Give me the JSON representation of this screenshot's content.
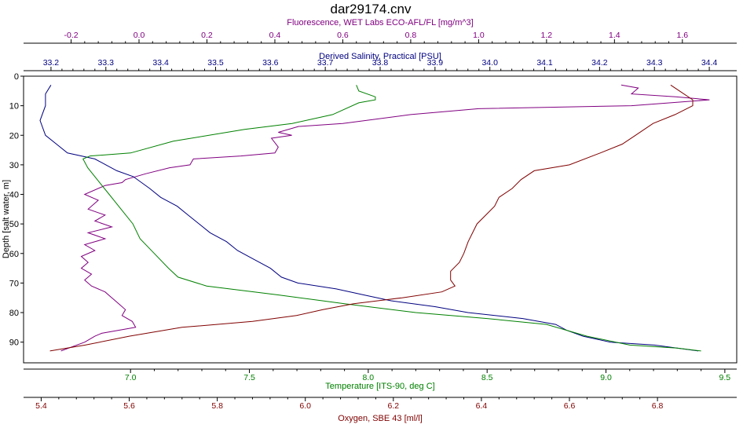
{
  "chart_data": {
    "type": "line",
    "title": "dar29174.cnv",
    "ylabel": "Depth [salt water, m]",
    "y_inverted": true,
    "ylim": [
      0,
      97
    ],
    "y_ticks": [
      0,
      10,
      20,
      30,
      40,
      50,
      60,
      70,
      80,
      90
    ],
    "grid": false,
    "axes": [
      {
        "id": "fluorescence",
        "position": "top",
        "label": "Fluorescence, WET Labs ECO-AFL/FL [mg/m^3]",
        "color": "#800080",
        "range": [
          -0.34,
          1.76
        ],
        "ticks": [
          -0.2,
          0.0,
          0.2,
          0.4,
          0.6,
          0.8,
          1.0,
          1.2,
          1.4,
          1.6
        ],
        "tick_labels": [
          "-0.2",
          "0.0",
          "0.2",
          "0.4",
          "0.6",
          "0.8",
          "1.0",
          "1.2",
          "1.4",
          "1.6"
        ]
      },
      {
        "id": "salinity",
        "position": "top",
        "label": "Derived Salinity, Practical [PSU]",
        "color": "#000080",
        "range": [
          33.15,
          34.45
        ],
        "ticks": [
          33.2,
          33.3,
          33.4,
          33.5,
          33.6,
          33.7,
          33.8,
          33.9,
          34.0,
          34.1,
          34.2,
          34.3,
          34.4
        ],
        "tick_labels": [
          "33.2",
          "33.3",
          "33.4",
          "33.5",
          "33.6",
          "33.7",
          "33.8",
          "33.9",
          "34.0",
          "34.1",
          "34.2",
          "34.3",
          "34.4"
        ]
      },
      {
        "id": "temperature",
        "position": "bottom",
        "label": "Temperature [ITS-90, deg C]",
        "color": "#008000",
        "range": [
          6.55,
          9.55
        ],
        "ticks": [
          7.0,
          7.5,
          8.0,
          8.5,
          9.0,
          9.5
        ],
        "tick_labels": [
          "7.0",
          "7.5",
          "8.0",
          "8.5",
          "9.0",
          "9.5"
        ]
      },
      {
        "id": "oxygen",
        "position": "bottom",
        "label": "Oxygen, SBE 43 [ml/l]",
        "color": "#800000",
        "range": [
          5.36,
          6.98
        ],
        "ticks": [
          5.4,
          5.6,
          5.8,
          6.0,
          6.2,
          6.4,
          6.6,
          6.8
        ],
        "tick_labels": [
          "5.4",
          "5.6",
          "5.8",
          "6.0",
          "6.2",
          "6.4",
          "6.6",
          "6.8"
        ]
      }
    ],
    "series": [
      {
        "name": "Fluorescence, WET Labs ECO-AFL/FL [mg/m^3]",
        "axis": "fluorescence",
        "color": "#800080",
        "points": [
          [
            1.42,
            3
          ],
          [
            1.47,
            4
          ],
          [
            1.45,
            6
          ],
          [
            1.58,
            7
          ],
          [
            1.68,
            8
          ],
          [
            1.45,
            10
          ],
          [
            1.0,
            11
          ],
          [
            0.8,
            13
          ],
          [
            0.6,
            16
          ],
          [
            0.47,
            17
          ],
          [
            0.41,
            19
          ],
          [
            0.45,
            20
          ],
          [
            0.39,
            21
          ],
          [
            0.41,
            24
          ],
          [
            0.4,
            26
          ],
          [
            0.3,
            27
          ],
          [
            0.16,
            28
          ],
          [
            0.15,
            30
          ],
          [
            0.09,
            31
          ],
          [
            0.02,
            33
          ],
          [
            -0.04,
            35
          ],
          [
            -0.05,
            36
          ],
          [
            -0.1,
            37
          ],
          [
            -0.16,
            40
          ],
          [
            -0.12,
            42
          ],
          [
            -0.15,
            45
          ],
          [
            -0.1,
            47
          ],
          [
            -0.13,
            49
          ],
          [
            -0.08,
            51
          ],
          [
            -0.15,
            53
          ],
          [
            -0.1,
            55
          ],
          [
            -0.16,
            57
          ],
          [
            -0.13,
            59
          ],
          [
            -0.17,
            61
          ],
          [
            -0.15,
            63
          ],
          [
            -0.17,
            65
          ],
          [
            -0.14,
            67
          ],
          [
            -0.16,
            69
          ],
          [
            -0.14,
            71
          ],
          [
            -0.1,
            73
          ],
          [
            -0.08,
            75
          ],
          [
            -0.06,
            77
          ],
          [
            -0.04,
            79
          ],
          [
            -0.05,
            81
          ],
          [
            -0.02,
            83
          ],
          [
            -0.01,
            85
          ],
          [
            -0.11,
            87
          ],
          [
            -0.13,
            88
          ],
          [
            -0.16,
            90
          ],
          [
            -0.23,
            93
          ]
        ]
      },
      {
        "name": "Derived Salinity, Practical [PSU]",
        "axis": "salinity",
        "color": "#000080",
        "points": [
          [
            33.2,
            3
          ],
          [
            33.19,
            6
          ],
          [
            33.19,
            10
          ],
          [
            33.18,
            15
          ],
          [
            33.19,
            20
          ],
          [
            33.21,
            23
          ],
          [
            33.23,
            26
          ],
          [
            33.28,
            28
          ],
          [
            33.3,
            30
          ],
          [
            33.32,
            32
          ],
          [
            33.35,
            34
          ],
          [
            33.38,
            38
          ],
          [
            33.4,
            41
          ],
          [
            33.43,
            44
          ],
          [
            33.45,
            47
          ],
          [
            33.47,
            50
          ],
          [
            33.49,
            53
          ],
          [
            33.52,
            56
          ],
          [
            33.54,
            59
          ],
          [
            33.57,
            62
          ],
          [
            33.6,
            65
          ],
          [
            33.62,
            68
          ],
          [
            33.65,
            70
          ],
          [
            33.72,
            72
          ],
          [
            33.77,
            74
          ],
          [
            33.82,
            76
          ],
          [
            33.9,
            78
          ],
          [
            33.96,
            80
          ],
          [
            34.06,
            82
          ],
          [
            34.12,
            84
          ],
          [
            34.14,
            86
          ],
          [
            34.17,
            88
          ],
          [
            34.22,
            90
          ],
          [
            34.3,
            91
          ],
          [
            34.38,
            93
          ]
        ]
      },
      {
        "name": "Temperature [ITS-90, deg C]",
        "axis": "temperature",
        "color": "#008000",
        "points": [
          [
            7.95,
            3
          ],
          [
            7.96,
            5
          ],
          [
            8.03,
            7
          ],
          [
            8.03,
            8
          ],
          [
            7.96,
            9
          ],
          [
            7.85,
            13
          ],
          [
            7.68,
            16
          ],
          [
            7.48,
            18
          ],
          [
            7.18,
            22
          ],
          [
            7.0,
            26
          ],
          [
            6.83,
            27
          ],
          [
            6.8,
            28
          ],
          [
            6.82,
            31
          ],
          [
            6.86,
            35
          ],
          [
            6.91,
            40
          ],
          [
            6.96,
            45
          ],
          [
            7.01,
            50
          ],
          [
            7.04,
            55
          ],
          [
            7.1,
            60
          ],
          [
            7.16,
            65
          ],
          [
            7.2,
            68
          ],
          [
            7.32,
            71
          ],
          [
            7.62,
            74
          ],
          [
            7.9,
            77
          ],
          [
            8.2,
            80
          ],
          [
            8.5,
            82
          ],
          [
            8.75,
            84
          ],
          [
            8.92,
            88
          ],
          [
            9.1,
            91
          ],
          [
            9.3,
            92
          ],
          [
            9.4,
            93
          ]
        ]
      },
      {
        "name": "Oxygen, SBE 43 [ml/l]",
        "axis": "oxygen",
        "color": "#800000",
        "points": [
          [
            6.83,
            3
          ],
          [
            6.85,
            5
          ],
          [
            6.88,
            8
          ],
          [
            6.88,
            10
          ],
          [
            6.84,
            13
          ],
          [
            6.79,
            16
          ],
          [
            6.75,
            20
          ],
          [
            6.72,
            23
          ],
          [
            6.67,
            26
          ],
          [
            6.6,
            30
          ],
          [
            6.52,
            32
          ],
          [
            6.49,
            35
          ],
          [
            6.47,
            38
          ],
          [
            6.44,
            41
          ],
          [
            6.43,
            44
          ],
          [
            6.41,
            47
          ],
          [
            6.39,
            50
          ],
          [
            6.38,
            53
          ],
          [
            6.37,
            56
          ],
          [
            6.36,
            60
          ],
          [
            6.35,
            63
          ],
          [
            6.33,
            66
          ],
          [
            6.33,
            69
          ],
          [
            6.34,
            71
          ],
          [
            6.31,
            73
          ],
          [
            6.22,
            75
          ],
          [
            6.11,
            77
          ],
          [
            6.04,
            79
          ],
          [
            5.98,
            81
          ],
          [
            5.88,
            83
          ],
          [
            5.72,
            85
          ],
          [
            5.6,
            88
          ],
          [
            5.5,
            91
          ],
          [
            5.42,
            93
          ]
        ]
      }
    ]
  }
}
